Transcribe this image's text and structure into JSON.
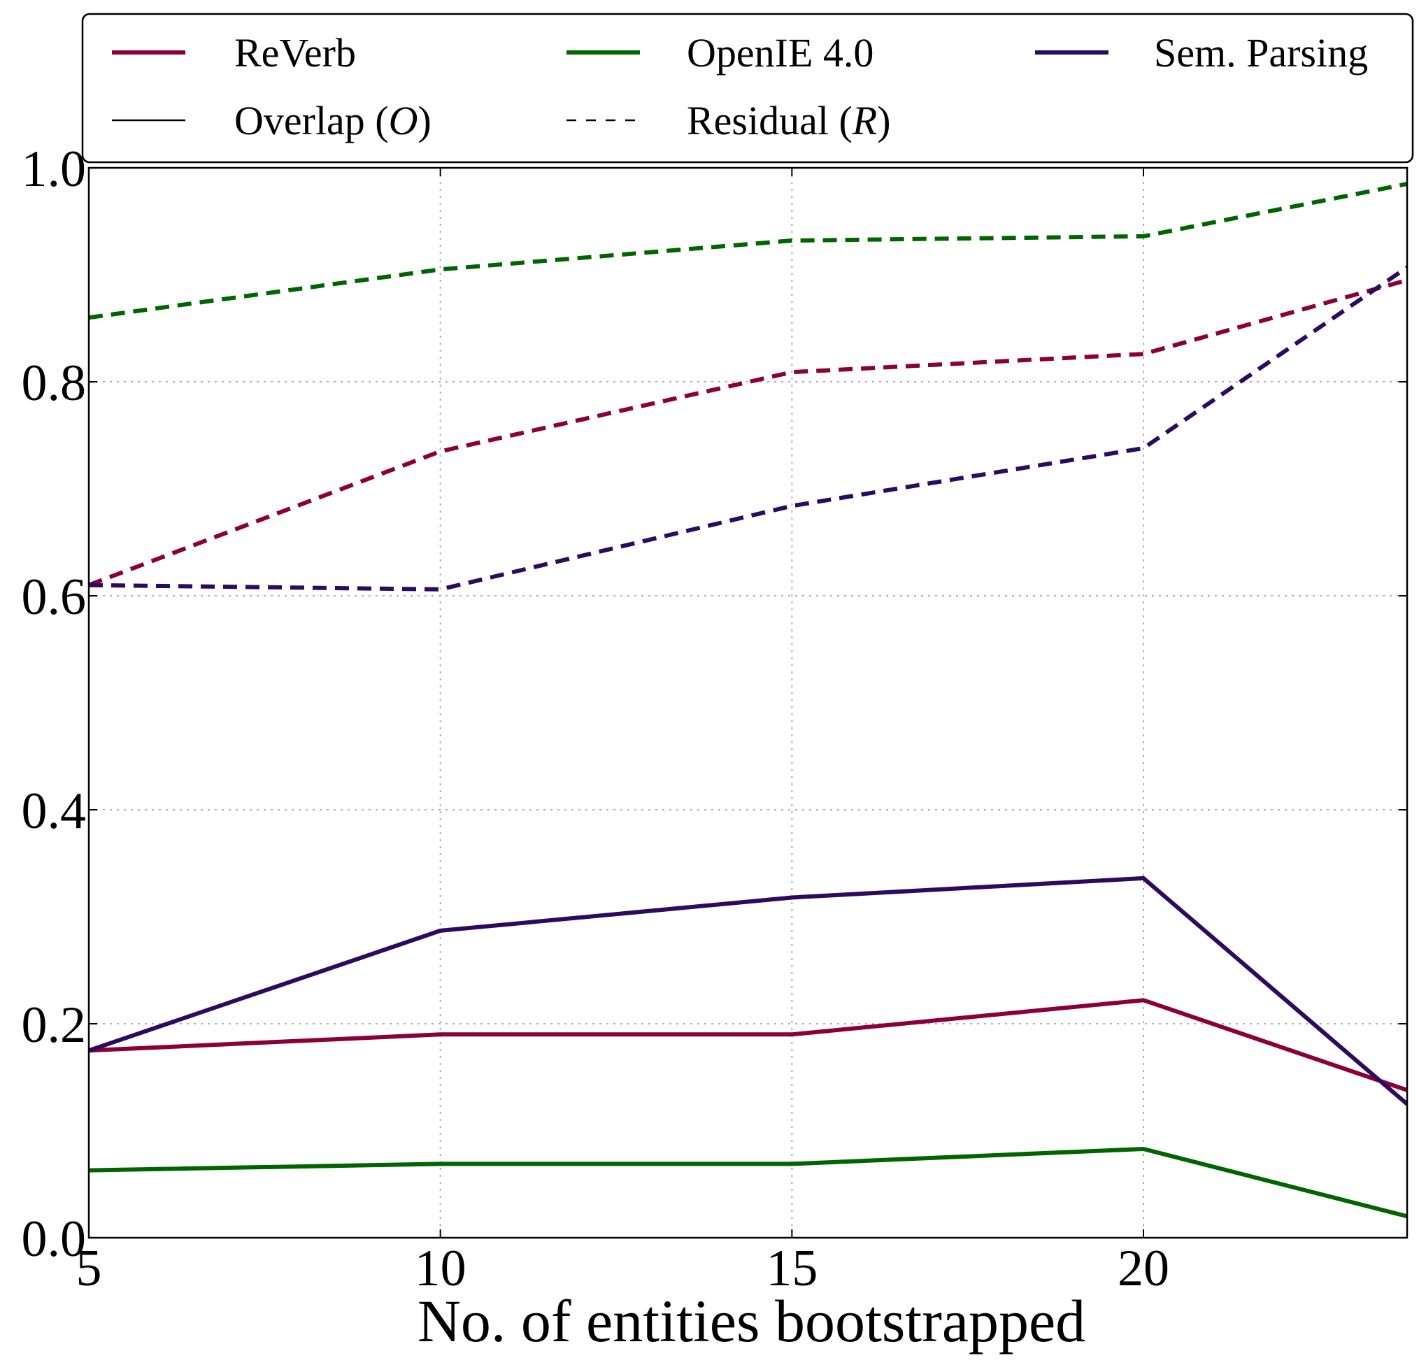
{
  "chart_data": {
    "type": "line",
    "title": "",
    "xlabel": "No. of entities bootstrapped",
    "ylabel": "",
    "x": [
      5,
      10,
      15,
      20,
      23.75
    ],
    "xlim": [
      5,
      23.75
    ],
    "ylim": [
      0.0,
      1.0
    ],
    "xticks": [
      5,
      10,
      15,
      20
    ],
    "xtick_labels": [
      "5",
      "10",
      "15",
      "20"
    ],
    "yticks": [
      0.0,
      0.2,
      0.4,
      0.6,
      0.8,
      1.0
    ],
    "ytick_labels": [
      "0.0",
      "0.2",
      "0.4",
      "0.6",
      "0.8",
      "1.0"
    ],
    "grid": true,
    "legend_placement": "top",
    "legend": [
      {
        "label": "ReVerb",
        "color": "#8b0038",
        "style": "solid-thick"
      },
      {
        "label": "OpenIE 4.0",
        "color": "#006400",
        "style": "solid-thick"
      },
      {
        "label": "Sem. Parsing",
        "color": "#2e0a5e",
        "style": "solid-thick"
      },
      {
        "label": "Overlap (",
        "label_italic": "O",
        "label_end": ")",
        "color": "#000000",
        "style": "solid-thin"
      },
      {
        "label": "Residual (",
        "label_italic": "R",
        "label_end": ")",
        "color": "#000000",
        "style": "dashed-thin"
      }
    ],
    "series": [
      {
        "system": "ReVerb",
        "metric": "Overlap",
        "color": "#8b0038",
        "dash": "solid",
        "values": [
          0.175,
          0.19,
          0.19,
          0.222,
          0.138
        ]
      },
      {
        "system": "ReVerb",
        "metric": "Residual",
        "color": "#8b0038",
        "dash": "dashed",
        "values": [
          0.61,
          0.735,
          0.809,
          0.826,
          0.895
        ]
      },
      {
        "system": "OpenIE 4.0",
        "metric": "Overlap",
        "color": "#006400",
        "dash": "solid",
        "values": [
          0.063,
          0.069,
          0.069,
          0.083,
          0.02
        ]
      },
      {
        "system": "OpenIE 4.0",
        "metric": "Residual",
        "color": "#006400",
        "dash": "dashed",
        "values": [
          0.86,
          0.905,
          0.932,
          0.936,
          0.985
        ]
      },
      {
        "system": "Sem. Parsing",
        "metric": "Overlap",
        "color": "#2e0a5e",
        "dash": "solid",
        "values": [
          0.175,
          0.287,
          0.318,
          0.336,
          0.125
        ]
      },
      {
        "system": "Sem. Parsing",
        "metric": "Residual",
        "color": "#2e0a5e",
        "dash": "dashed",
        "values": [
          0.61,
          0.606,
          0.684,
          0.738,
          0.907
        ]
      }
    ]
  }
}
